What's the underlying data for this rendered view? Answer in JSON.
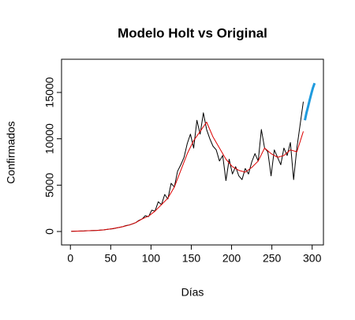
{
  "chart_data": {
    "type": "line",
    "title": "Modelo Holt vs Original",
    "x_label": "Días",
    "y_label": "Confirmados",
    "xlim": [
      -11,
      314
    ],
    "ylim": [
      -1450,
      18580
    ],
    "xticks": [
      0,
      50,
      100,
      150,
      200,
      250,
      300
    ],
    "yticks": [
      0,
      5000,
      10000,
      15000
    ],
    "series": [
      {
        "color": "#000000",
        "width": 1,
        "x": [
          1,
          5,
          9,
          13,
          17,
          21,
          25,
          29,
          33,
          37,
          41,
          45,
          49,
          53,
          57,
          61,
          65,
          69,
          73,
          77,
          81,
          85,
          89,
          93,
          97,
          101,
          105,
          109,
          113,
          117,
          121,
          125,
          129,
          133,
          137,
          141,
          145,
          149,
          153,
          157,
          161,
          165,
          169,
          173,
          177,
          181,
          185,
          189,
          193,
          197,
          201,
          205,
          209,
          213,
          217,
          221,
          225,
          229,
          233,
          237,
          241,
          245,
          249,
          253,
          257,
          261,
          265,
          269,
          273,
          277,
          281,
          285,
          289
        ],
        "values": [
          20,
          30,
          40,
          50,
          60,
          80,
          90,
          110,
          120,
          150,
          170,
          220,
          260,
          300,
          380,
          450,
          520,
          640,
          700,
          820,
          950,
          1200,
          1350,
          1700,
          1600,
          2300,
          2200,
          3200,
          2900,
          4000,
          3500,
          5200,
          4800,
          6500,
          7200,
          8000,
          9500,
          10500,
          9000,
          12000,
          10500,
          12800,
          11000,
          10000,
          9200,
          8800,
          7600,
          8200,
          5500,
          7800,
          6200,
          7000,
          6000,
          5600,
          6800,
          6200,
          7500,
          8400,
          7600,
          11000,
          9000,
          8600,
          6000,
          8800,
          8000,
          7200,
          9000,
          8200,
          9600,
          5600,
          9000,
          11500,
          14000
        ]
      },
      {
        "color": "#dd0000",
        "width": 1,
        "x": [
          1,
          9,
          17,
          25,
          33,
          41,
          49,
          57,
          65,
          73,
          81,
          89,
          97,
          105,
          113,
          121,
          129,
          137,
          145,
          153,
          161,
          169,
          177,
          185,
          193,
          201,
          209,
          217,
          225,
          233,
          241,
          249,
          257,
          265,
          273,
          281,
          289
        ],
        "values": [
          20,
          40,
          60,
          90,
          120,
          170,
          260,
          380,
          520,
          700,
          950,
          1350,
          1650,
          2200,
          2900,
          3600,
          4800,
          6600,
          8400,
          9800,
          10800,
          11800,
          10200,
          9000,
          7800,
          7000,
          6600,
          6400,
          6900,
          7600,
          9000,
          8400,
          8000,
          8200,
          8800,
          8600,
          10800
        ]
      },
      {
        "color": "#1f9bde",
        "width": 3,
        "x": [
          291,
          293,
          295,
          297,
          299,
          301,
          303
        ],
        "values": [
          12000,
          12800,
          13500,
          14200,
          14900,
          15500,
          16000
        ]
      }
    ]
  }
}
